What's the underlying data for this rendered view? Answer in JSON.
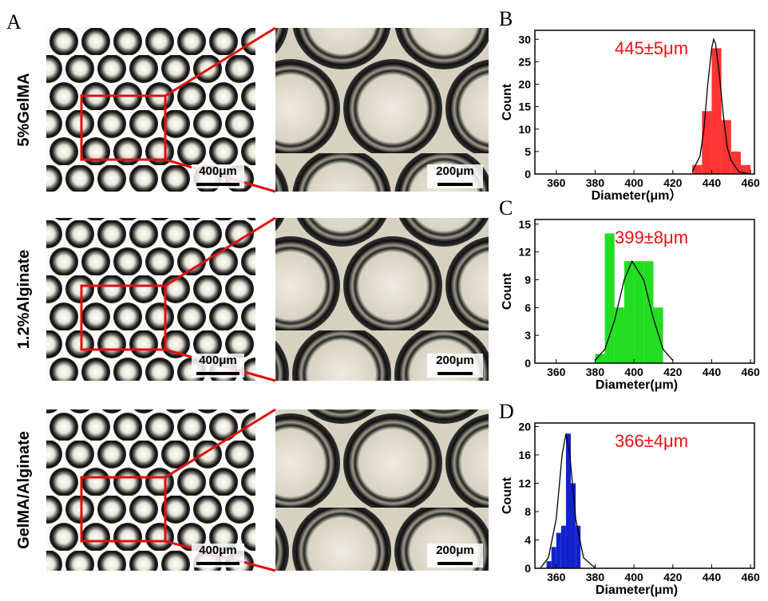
{
  "microscopy": {
    "panel": "A",
    "rows": [
      {
        "label": "5%GelMA",
        "scale_wide": "400μm",
        "scale_zoom": "200μm"
      },
      {
        "label": "1.2%Alginate",
        "scale_wide": "400μm",
        "scale_zoom": "200μm"
      },
      {
        "label": "GelMA/Alginate",
        "scale_wide": "400μm",
        "scale_zoom": "200μm"
      }
    ]
  },
  "chart_data": [
    {
      "type": "histogram",
      "panel": "B",
      "annotation": "445±5μm",
      "xlabel": "Diameter(μm）",
      "ylabel": "Count",
      "color": "#ff3333",
      "bins": [
        430,
        435,
        440,
        445,
        450,
        455,
        460
      ],
      "values": [
        2,
        14,
        28,
        12,
        5,
        2
      ],
      "fit_x": [
        430,
        434,
        436,
        438,
        440,
        441,
        442,
        444,
        446,
        448,
        450,
        454,
        460
      ],
      "fit_y": [
        0.5,
        4,
        10,
        20,
        28,
        30,
        29,
        22,
        13,
        6,
        3,
        0.5,
        0
      ],
      "xlim": [
        349,
        462
      ],
      "ylim": [
        0,
        32
      ],
      "xticks": [
        360,
        380,
        400,
        420,
        440,
        460
      ],
      "yticks": [
        0,
        5,
        10,
        15,
        20,
        25,
        30
      ]
    },
    {
      "type": "histogram",
      "panel": "C",
      "annotation": "399±8μm",
      "xlabel": "Diameter(μm)",
      "ylabel": "Count",
      "color": "#22dd22",
      "bins": [
        380,
        385,
        390,
        395,
        400,
        405,
        410,
        415
      ],
      "values": [
        1,
        14,
        6,
        11,
        11,
        11,
        6
      ],
      "fit_x": [
        380,
        385,
        390,
        395,
        399,
        405,
        410,
        415,
        420
      ],
      "fit_y": [
        0.3,
        1.5,
        4.6,
        9,
        11,
        9,
        4.8,
        1.5,
        0.3
      ],
      "xlim": [
        349,
        462
      ],
      "ylim": [
        0,
        15.5
      ],
      "xticks": [
        360,
        380,
        400,
        420,
        440,
        460
      ],
      "yticks": [
        0,
        3,
        6,
        9,
        12,
        15
      ]
    },
    {
      "type": "histogram",
      "panel": "D",
      "annotation": "366±4μm",
      "xlabel": "Diameter(μm)",
      "ylabel": "Count",
      "color": "#1122cc",
      "bins": [
        355,
        357.5,
        360,
        362.5,
        365,
        367.5,
        370,
        372.5
      ],
      "values": [
        1,
        3,
        5,
        6,
        19,
        12,
        6
      ],
      "fit_x": [
        352,
        356,
        360,
        363,
        365,
        367,
        370,
        374,
        380
      ],
      "fit_y": [
        0.1,
        1.5,
        7,
        16,
        19,
        16,
        7,
        1.5,
        0.05
      ],
      "xlim": [
        349,
        462
      ],
      "ylim": [
        0,
        20.5
      ],
      "xticks": [
        360,
        380,
        400,
        420,
        440,
        460
      ],
      "yticks": [
        0,
        4,
        8,
        12,
        16,
        20
      ]
    }
  ]
}
